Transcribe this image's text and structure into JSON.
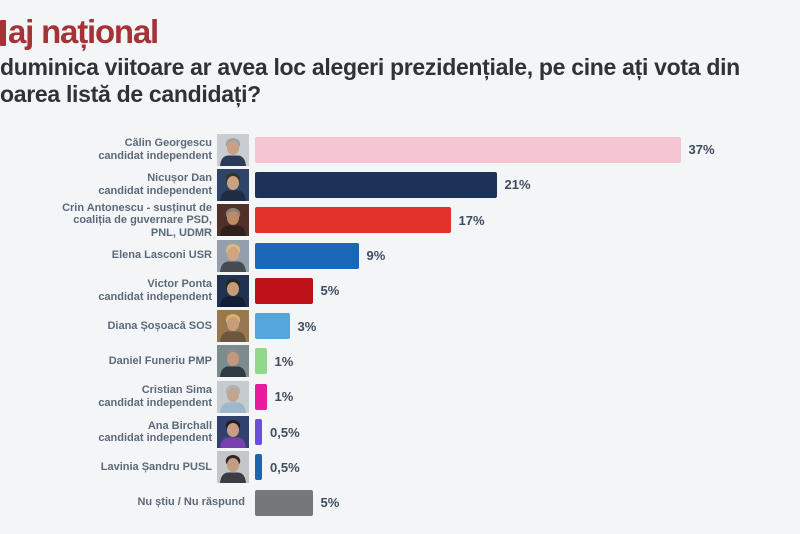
{
  "header": {
    "title": "aj național",
    "title_color": "#A63238",
    "question_line1": "duminica viitoare ar avea loc alegeri prezidențiale, pe cine ați vota din",
    "question_line2": "oarea listă de candidați?"
  },
  "chart_data": {
    "type": "bar",
    "orientation": "horizontal",
    "unit": "%",
    "title": "duminica viitoare ar avea loc alegeri prezidențiale, pe cine ați vota din oarea listă de candidați?",
    "xlabel": "",
    "ylabel": "",
    "xlim": [
      0,
      40
    ],
    "grid": false,
    "legend": false,
    "categories": [
      "Călin Georgescu candidat independent",
      "Nicușor Dan candidat independent",
      "Crin Antonescu - susținut de coaliția de guvernare PSD, PNL, UDMR",
      "Elena Lasconi USR",
      "Victor Ponta candidat independent",
      "Diana Șoșoacă SOS",
      "Daniel Funeriu PMP",
      "Cristian Sima candidat independent",
      "Ana Birchall candidat independent",
      "Lavinia Șandru PUSL",
      "Nu știu / Nu răspund"
    ],
    "values": [
      37,
      21,
      17,
      9,
      5,
      3,
      1,
      1,
      0.5,
      0.5,
      5
    ],
    "value_labels": [
      "37%",
      "21%",
      "17%",
      "9%",
      "5%",
      "3%",
      "1%",
      "1%",
      "0,5%",
      "0,5%",
      "5%"
    ],
    "bar_colors": [
      "#F6C5D2",
      "#1C3357",
      "#E3322B",
      "#1A67B9",
      "#BD1218",
      "#55A6DB",
      "#90D88A",
      "#E81A9E",
      "#6B4EDC",
      "#2264AC",
      "#757779"
    ],
    "rows": [
      {
        "label_lines": [
          "Călin Georgescu",
          "candidat independent"
        ],
        "value": 37,
        "display": "37%",
        "color": "#F6C5D2",
        "photo": {
          "bg": "#C9CDD2",
          "hair": "#9FA3A6",
          "skin": "#C8A184",
          "suit": "#2C3C55"
        }
      },
      {
        "label_lines": [
          "Nicușor Dan",
          "candidat independent"
        ],
        "value": 21,
        "display": "21%",
        "color": "#1C3357",
        "photo": {
          "bg": "#2E4568",
          "hair": "#3A3028",
          "skin": "#C9A183",
          "suit": "#1E2C44"
        }
      },
      {
        "label_lines": [
          "Crin Antonescu - susținut de",
          "coaliția de guvernare PSD,",
          "PNL, UDMR"
        ],
        "value": 17,
        "display": "17%",
        "color": "#E3322B",
        "photo": {
          "bg": "#503029",
          "hair": "#8A8078",
          "skin": "#BC8A64",
          "suit": "#2E201C"
        }
      },
      {
        "label_lines": [
          "Elena Lasconi USR"
        ],
        "value": 9,
        "display": "9%",
        "color": "#1A67B9",
        "photo": {
          "bg": "#93A0AC",
          "hair": "#D9BC7E",
          "skin": "#CFA584",
          "suit": "#474C52"
        }
      },
      {
        "label_lines": [
          "Victor Ponta",
          "candidat independent"
        ],
        "value": 5,
        "display": "5%",
        "color": "#BD1218",
        "photo": {
          "bg": "#20324F",
          "hair": "#2A2420",
          "skin": "#C49B78",
          "suit": "#141F33"
        }
      },
      {
        "label_lines": [
          "Diana Șoșoacă SOS"
        ],
        "value": 3,
        "display": "3%",
        "color": "#55A6DB",
        "photo": {
          "bg": "#97784F",
          "hair": "#D8B06A",
          "skin": "#C89D7C",
          "suit": "#6B563F"
        }
      },
      {
        "label_lines": [
          "Daniel Funeriu PMP"
        ],
        "value": 1,
        "display": "1%",
        "color": "#90D88A",
        "photo": {
          "bg": "#7C8C8E",
          "hair": "#8C8C88",
          "skin": "#C19880",
          "suit": "#2F3A42"
        }
      },
      {
        "label_lines": [
          "Cristian Sima",
          "candidat independent"
        ],
        "value": 1,
        "display": "1%",
        "color": "#E81A9E",
        "photo": {
          "bg": "#C6CBCF",
          "hair": "#B0B2B4",
          "skin": "#C2A58E",
          "suit": "#9DB8CA"
        }
      },
      {
        "label_lines": [
          "Ana Birchall",
          "candidat independent"
        ],
        "value": 0.5,
        "display": "0,5%",
        "color": "#6B4EDC",
        "photo": {
          "bg": "#32406E",
          "hair": "#241C20",
          "skin": "#C79E84",
          "suit": "#7A3FAE"
        }
      },
      {
        "label_lines": [
          "Lavinia Șandru PUSL"
        ],
        "value": 0.5,
        "display": "0,5%",
        "color": "#2264AC",
        "photo": {
          "bg": "#C4C6C8",
          "hair": "#2E2624",
          "skin": "#C49C80",
          "suit": "#3C3C44"
        }
      },
      {
        "label_lines": [
          "Nu știu / Nu răspund"
        ],
        "value": 5,
        "display": "5%",
        "color": "#757779",
        "photo": null
      }
    ]
  }
}
